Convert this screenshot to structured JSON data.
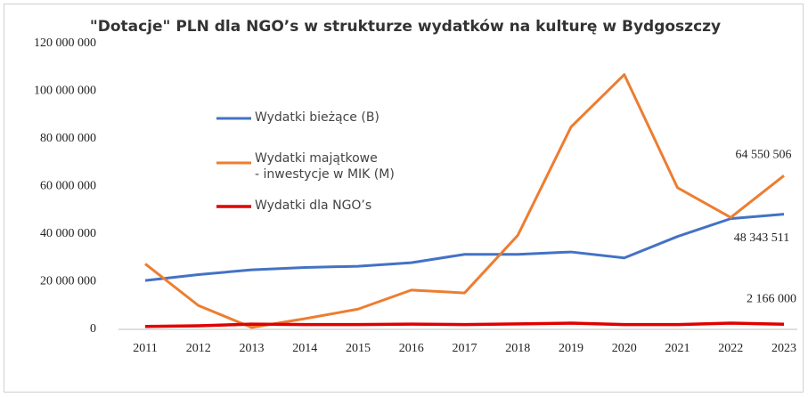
{
  "chart_data": {
    "type": "line",
    "title": "\"Dotacje\" PLN dla NGO’s w strukturze wydatków na kulturę w Bydgoszczy",
    "categories": [
      "2011",
      "2012",
      "2013",
      "2014",
      "2015",
      "2016",
      "2017",
      "2018",
      "2019",
      "2020",
      "2021",
      "2022",
      "2023"
    ],
    "series": [
      {
        "name": "Wydatki bieżące (B)",
        "color": "#4472c4",
        "values": [
          20500000,
          23000000,
          25000000,
          26000000,
          26500000,
          28000000,
          31500000,
          31500000,
          32500000,
          30000000,
          39000000,
          46500000,
          48343511
        ],
        "value_labels": [
          null,
          null,
          null,
          null,
          null,
          null,
          null,
          null,
          null,
          null,
          null,
          null,
          "48 343 511"
        ]
      },
      {
        "name": "Wydatki majątkowe\n- inwestycje w MIK (M)",
        "color": "#ed7d31",
        "values": [
          27500000,
          10000000,
          800000,
          4500000,
          8500000,
          16500000,
          15300000,
          39500000,
          85000000,
          107000000,
          59500000,
          47000000,
          64550506
        ],
        "value_labels": [
          null,
          null,
          null,
          null,
          null,
          null,
          null,
          null,
          null,
          null,
          null,
          null,
          "64 550 506"
        ]
      },
      {
        "name": "Wydatki dla NGO’s",
        "color": "#e00000",
        "values": [
          1200000,
          1500000,
          2200000,
          2000000,
          2000000,
          2200000,
          2000000,
          2300000,
          2600000,
          2000000,
          2000000,
          2600000,
          2166000
        ],
        "value_labels": [
          null,
          null,
          null,
          null,
          null,
          null,
          null,
          null,
          null,
          null,
          null,
          null,
          "2 166 000"
        ]
      }
    ],
    "ylim": [
      0,
      120000000
    ],
    "yticks": [
      0,
      {
        "value": 20000000,
        "label": "20 000 000"
      },
      {
        "value": 40000000,
        "label": "40 000 000"
      },
      {
        "value": 60000000,
        "label": "60 000 000"
      },
      {
        "value": 80000000,
        "label": "80 000 000"
      },
      {
        "value": 100000000,
        "label": "100 000 000"
      },
      {
        "value": 120000000,
        "label": "120 000 000"
      }
    ],
    "grid": false
  }
}
